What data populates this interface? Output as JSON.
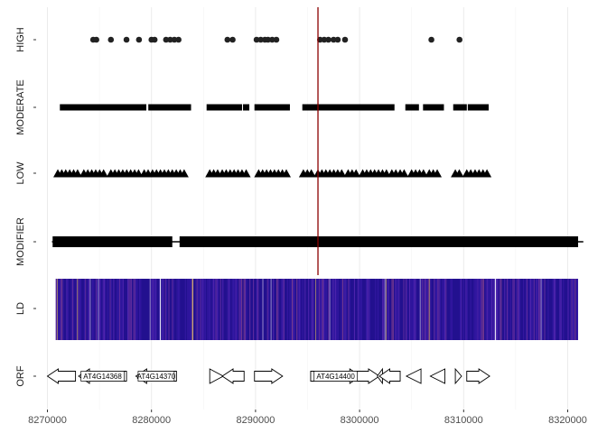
{
  "chart_data": {
    "type": "scatter",
    "title": "",
    "xlabel": "",
    "ylabel": "",
    "xlim": [
      8270000,
      8321000
    ],
    "x_ticks": [
      8270000,
      8280000,
      8290000,
      8300000,
      8310000,
      8320000
    ],
    "x_tick_labels": [
      "8270000",
      "8280000",
      "8290000",
      "8300000",
      "8310000",
      "8320000"
    ],
    "grid": true,
    "rows": [
      "HIGH",
      "MODERATE",
      "LOW",
      "MODIFIER",
      "LD",
      "ORF"
    ],
    "focal_position": 8296000,
    "focal_color": "#8b0000",
    "high": {
      "marker": "circle",
      "positions": [
        8274400,
        8274700,
        8276100,
        8277600,
        8278800,
        8280000,
        8280300,
        8281400,
        8281800,
        8282200,
        8282600,
        8287300,
        8287800,
        8290100,
        8290500,
        8290900,
        8291200,
        8291600,
        8292000,
        8296200,
        8296600,
        8297000,
        8297500,
        8297900,
        8298600,
        8306900,
        8309600
      ]
    },
    "moderate": {
      "marker": "square",
      "segments": [
        [
          8271500,
          8279200
        ],
        [
          8280000,
          8283500
        ],
        [
          8285600,
          8286700
        ],
        [
          8287000,
          8288700
        ],
        [
          8289100,
          8289400
        ],
        [
          8290200,
          8293200
        ],
        [
          8294800,
          8295500
        ],
        [
          8296000,
          8299500
        ],
        [
          8299800,
          8301800
        ],
        [
          8302000,
          8303200
        ],
        [
          8304700,
          8305700
        ],
        [
          8306400,
          8307800
        ],
        [
          8309300,
          8310200
        ],
        [
          8310700,
          8312400
        ]
      ]
    },
    "low": {
      "marker": "triangle",
      "segments": [
        [
          8271000,
          8273200
        ],
        [
          8273500,
          8275500
        ],
        [
          8276100,
          8279000
        ],
        [
          8279300,
          8279700
        ],
        [
          8280100,
          8283500
        ],
        [
          8285600,
          8286400
        ],
        [
          8286800,
          8288800
        ],
        [
          8289100,
          8289400
        ],
        [
          8290300,
          8293100
        ],
        [
          8294600,
          8295500
        ],
        [
          8296000,
          8298600
        ],
        [
          8298900,
          8300000
        ],
        [
          8300300,
          8302900
        ],
        [
          8303100,
          8303600
        ],
        [
          8303900,
          8304300
        ],
        [
          8305000,
          8306300
        ],
        [
          8306700,
          8307800
        ],
        [
          8309200,
          8309900
        ],
        [
          8310300,
          8310800
        ],
        [
          8311100,
          8312500
        ]
      ]
    },
    "modifier": {
      "marker": "horizontal-line",
      "segments": [
        [
          8270500,
          8282000
        ],
        [
          8282700,
          8321000
        ]
      ],
      "extent": [
        8270000,
        8321500
      ]
    },
    "ld": {
      "type": "heatmap",
      "range": [
        8270800,
        8321000
      ],
      "base_color": "#22108f",
      "accent_colors": [
        "#3a1aa8",
        "#5b2ab6",
        "#7d3aa6",
        "#9b4d8f",
        "#c7a36a",
        "#e8c070",
        "#b9a9d9",
        "#ffffff"
      ]
    },
    "orfs": [
      {
        "start": 8270000,
        "end": 8272700,
        "strand": "-",
        "label": ""
      },
      {
        "start": 8273000,
        "end": 8277600,
        "strand": "-",
        "label": "AT4G14368"
      },
      {
        "start": 8278500,
        "end": 8282400,
        "strand": "-",
        "label": "AT4G14370"
      },
      {
        "start": 8285600,
        "end": 8286900,
        "strand": "+",
        "label": ""
      },
      {
        "start": 8286800,
        "end": 8288900,
        "strand": "-",
        "label": ""
      },
      {
        "start": 8289900,
        "end": 8292600,
        "strand": "+",
        "label": ""
      },
      {
        "start": 8295300,
        "end": 8300100,
        "strand": "+",
        "label": "AT4G14400"
      },
      {
        "start": 8299500,
        "end": 8301900,
        "strand": "+",
        "label": ""
      },
      {
        "start": 8301700,
        "end": 8302200,
        "strand": "-",
        "label": ""
      },
      {
        "start": 8301900,
        "end": 8303900,
        "strand": "-",
        "label": ""
      },
      {
        "start": 8304500,
        "end": 8305900,
        "strand": "-",
        "label": ""
      },
      {
        "start": 8306800,
        "end": 8308200,
        "strand": "-",
        "label": ""
      },
      {
        "start": 8309200,
        "end": 8309800,
        "strand": "+",
        "label": ""
      },
      {
        "start": 8310300,
        "end": 8312500,
        "strand": "+",
        "label": ""
      }
    ]
  }
}
